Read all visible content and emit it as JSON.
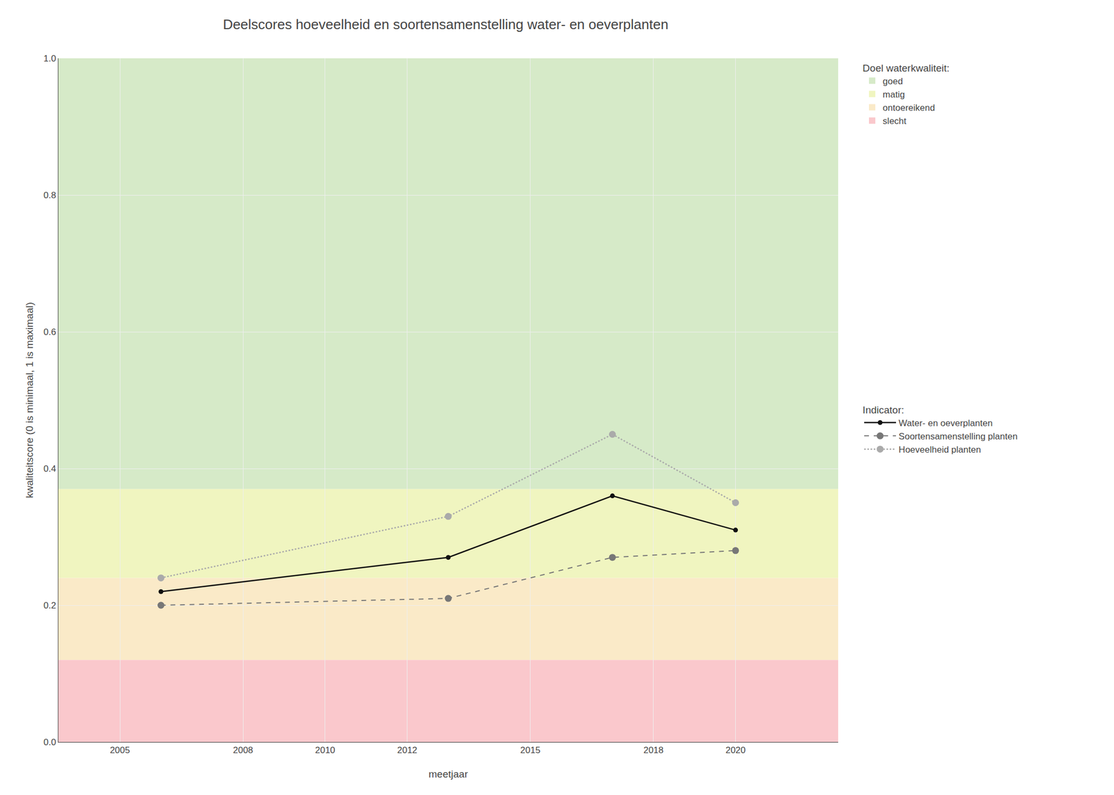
{
  "chart_data": {
    "type": "line",
    "title": "Deelscores hoeveelheid en soortensamenstelling water- en oeverplanten",
    "xlabel": "meetjaar",
    "ylabel": "kwaliteitscore (0 is minimaal, 1 is maximaal)",
    "xlim": [
      2003.5,
      2022.5
    ],
    "ylim": [
      0.0,
      1.0
    ],
    "xticks": [
      2005,
      2008,
      2010,
      2012,
      2015,
      2018,
      2020
    ],
    "yticks": [
      {
        "value": 0.0,
        "label": "0.0"
      },
      0.2,
      0.4,
      0.6,
      0.8,
      {
        "value": 1.0,
        "label": "1.0"
      }
    ],
    "grid": true,
    "bands_title": "Doel waterkwaliteit:",
    "bands": [
      {
        "name": "goed",
        "ymin": 0.37,
        "ymax": 1.0,
        "color": "#d6eac8"
      },
      {
        "name": "matig",
        "ymin": 0.24,
        "ymax": 0.37,
        "color": "#f0f5c0"
      },
      {
        "name": "ontoereikend",
        "ymin": 0.12,
        "ymax": 0.24,
        "color": "#faeac8"
      },
      {
        "name": "slecht",
        "ymin": 0.0,
        "ymax": 0.12,
        "color": "#fac8cc"
      }
    ],
    "legend_title": "Indicator:",
    "x": [
      2006,
      2013,
      2017,
      2020
    ],
    "series": [
      {
        "name": "Water- en oeverplanten",
        "color": "#111111",
        "line_style": "solid",
        "marker": "circle",
        "values": [
          0.22,
          0.27,
          0.36,
          0.31
        ]
      },
      {
        "name": "Soortensamenstelling planten",
        "color": "#777777",
        "line_style": "dashed",
        "marker": "circle",
        "values": [
          0.2,
          0.21,
          0.27,
          0.28
        ]
      },
      {
        "name": "Hoeveelheid planten",
        "color": "#aaaaaa",
        "line_style": "dotted",
        "marker": "circle",
        "values": [
          0.24,
          0.33,
          0.45,
          0.35
        ]
      }
    ]
  }
}
